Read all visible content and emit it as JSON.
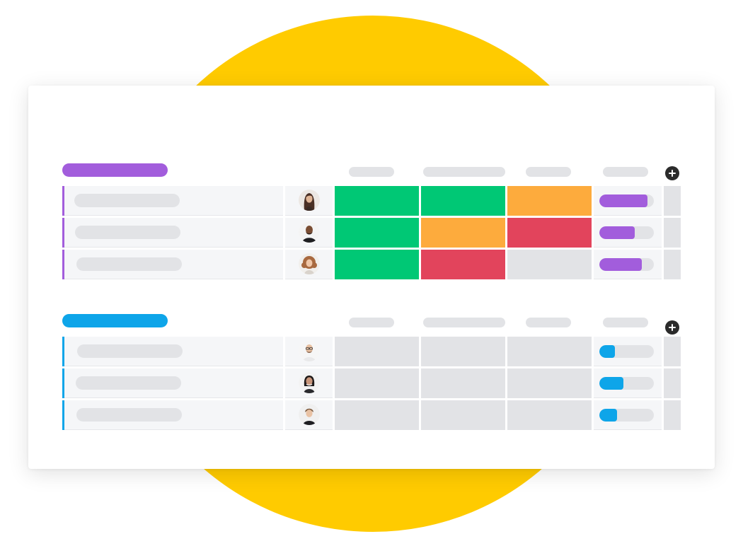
{
  "colors": {
    "backdrop": "#ffcb00",
    "done": "#00c875",
    "working": "#fdab3d",
    "stuck": "#e2445c",
    "empty": "#e2e3e6"
  },
  "groups": [
    {
      "accent": "#a25ddc",
      "add_column_icon": "plus-circle-icon",
      "rows": [
        {
          "avatar": "person-long-dark-hair",
          "statuses": [
            "done",
            "done",
            "working"
          ],
          "progress": 0.88
        },
        {
          "avatar": "person-bald-beard",
          "statuses": [
            "done",
            "working",
            "stuck"
          ],
          "progress": 0.65
        },
        {
          "avatar": "person-curly-hair",
          "statuses": [
            "done",
            "stuck",
            "empty"
          ],
          "progress": 0.78
        }
      ]
    },
    {
      "accent": "#0ea5e9",
      "add_column_icon": "plus-circle-icon",
      "rows": [
        {
          "avatar": "person-bald-glasses",
          "statuses": [
            "empty",
            "empty",
            "empty"
          ],
          "progress": 0.28
        },
        {
          "avatar": "person-dark-hair",
          "statuses": [
            "empty",
            "empty",
            "empty"
          ],
          "progress": 0.44
        },
        {
          "avatar": "person-short-hair",
          "statuses": [
            "empty",
            "empty",
            "empty"
          ],
          "progress": 0.32
        }
      ]
    }
  ]
}
